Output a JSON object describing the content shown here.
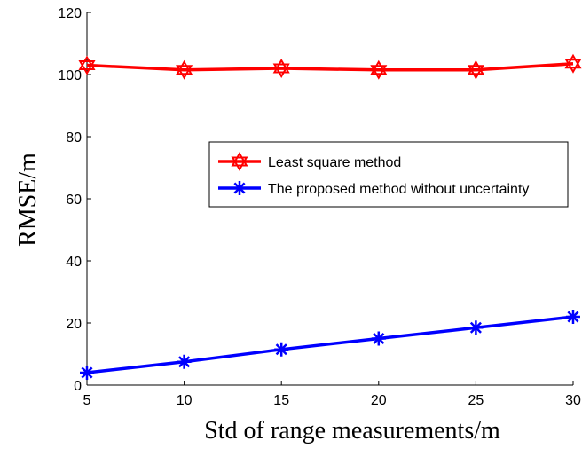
{
  "chart_data": {
    "type": "line",
    "xlabel": "Std of range measurements/m",
    "ylabel": "RMSE/m",
    "x": [
      5,
      10,
      15,
      20,
      25,
      30
    ],
    "xlim": [
      5,
      30
    ],
    "ylim": [
      0,
      120
    ],
    "xticks": [
      "5",
      "10",
      "15",
      "20",
      "25",
      "30"
    ],
    "yticks": [
      "0",
      "20",
      "40",
      "60",
      "80",
      "100",
      "120"
    ],
    "grid": false,
    "legend_position": "center-right",
    "series": [
      {
        "name": "Least square method",
        "color": "#ff0000",
        "marker": "hexagram",
        "values": [
          103,
          101.5,
          102,
          101.5,
          101.5,
          103.5
        ]
      },
      {
        "name": "The proposed method without uncertainty",
        "color": "#0000ff",
        "marker": "asterisk",
        "values": [
          4,
          7.5,
          11.5,
          15,
          18.5,
          22
        ]
      }
    ]
  }
}
